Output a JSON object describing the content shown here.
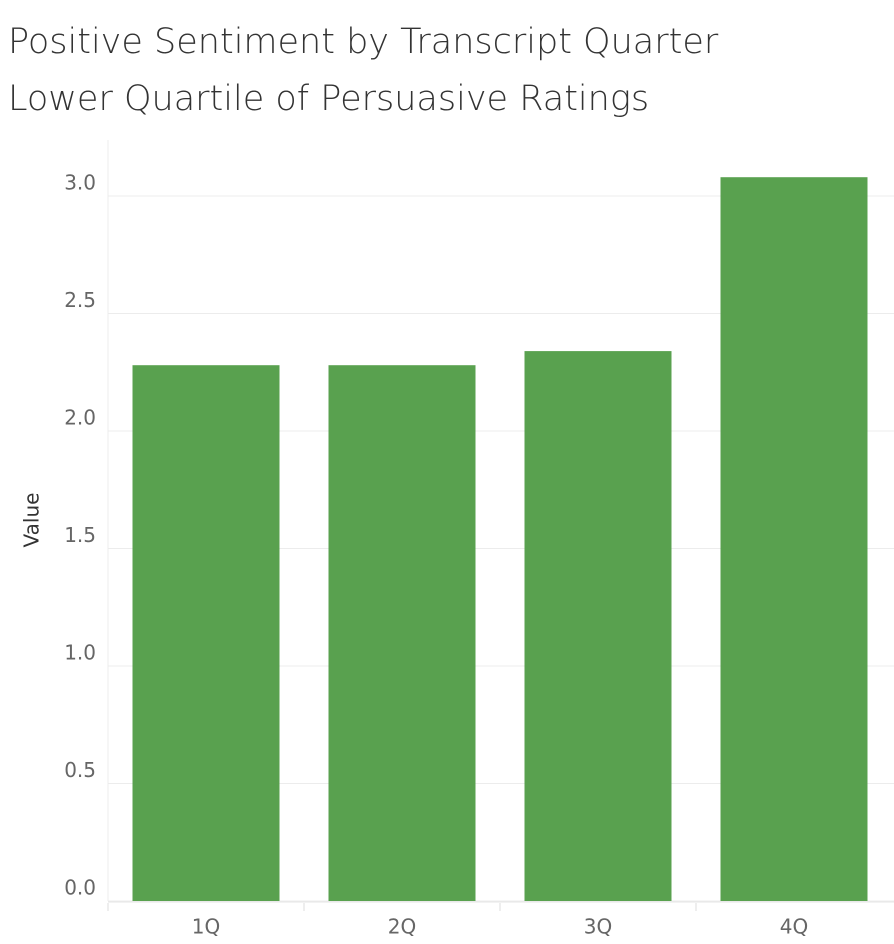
{
  "chart_data": {
    "type": "bar",
    "title": "Positive Sentiment by Transcript Quarter",
    "subtitle": "Lower Quartile of Persuasive Ratings",
    "y_label": "Value",
    "categories": [
      "1Q",
      "2Q",
      "3Q",
      "4Q"
    ],
    "values": [
      2.28,
      2.28,
      2.34,
      3.08
    ],
    "color": "#59a14f",
    "ylim": [
      0,
      3.2
    ],
    "yticks": [
      {
        "value": 0,
        "label": "0.0"
      },
      0.5,
      {
        "value": 1,
        "label": "1.0"
      },
      1.5,
      {
        "value": 2,
        "label": "2.0"
      },
      2.5,
      {
        "value": 3,
        "label": "3.0"
      }
    ],
    "grid": true
  }
}
